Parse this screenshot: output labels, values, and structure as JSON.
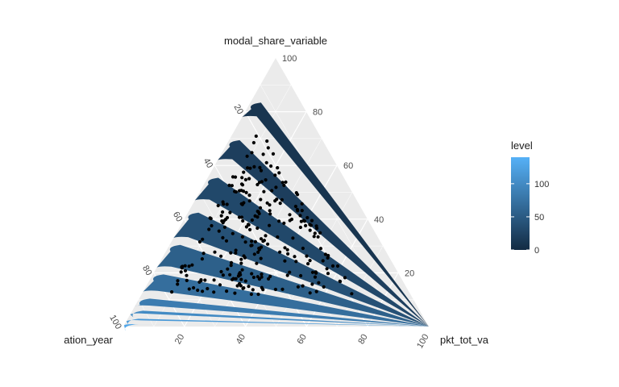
{
  "chart_data": {
    "type": "ternary",
    "axes": {
      "top": "modal_share_variable",
      "left": "ation_year",
      "right": "pkt_tot_va"
    },
    "ticks": {
      "top": [
        "100",
        "80",
        "60",
        "40",
        "20"
      ],
      "left": [
        "20",
        "40",
        "60",
        "80",
        "100"
      ],
      "bottom": [
        "20",
        "40",
        "60",
        "80",
        "100"
      ]
    },
    "tick_values": [
      20,
      40,
      60,
      80,
      100
    ],
    "legend": {
      "title": "level",
      "ticks": [
        "0",
        "50",
        "100"
      ],
      "tick_values": [
        0,
        50,
        100
      ],
      "range": [
        0,
        140
      ],
      "colors": {
        "low": "#132b43",
        "high": "#56b1f7"
      }
    },
    "bands": [
      {
        "level": 10,
        "a": 0.78,
        "b": 0.84
      },
      {
        "level": 20,
        "a": 0.62,
        "b": 0.7
      },
      {
        "level": 30,
        "a": 0.47,
        "b": 0.56
      },
      {
        "level": 40,
        "a": 0.33,
        "b": 0.43
      },
      {
        "level": 55,
        "a": 0.22,
        "b": 0.31
      },
      {
        "level": 70,
        "a": 0.13,
        "b": 0.2
      },
      {
        "level": 85,
        "a": 0.075,
        "b": 0.11
      },
      {
        "level": 100,
        "a": 0.045,
        "b": 0.065
      },
      {
        "level": 115,
        "a": 0.02,
        "b": 0.035
      },
      {
        "level": 130,
        "a": 0.005,
        "b": 0.014
      }
    ],
    "grid": true,
    "panel_color": "#ebebeb",
    "point_color": "#000000"
  }
}
